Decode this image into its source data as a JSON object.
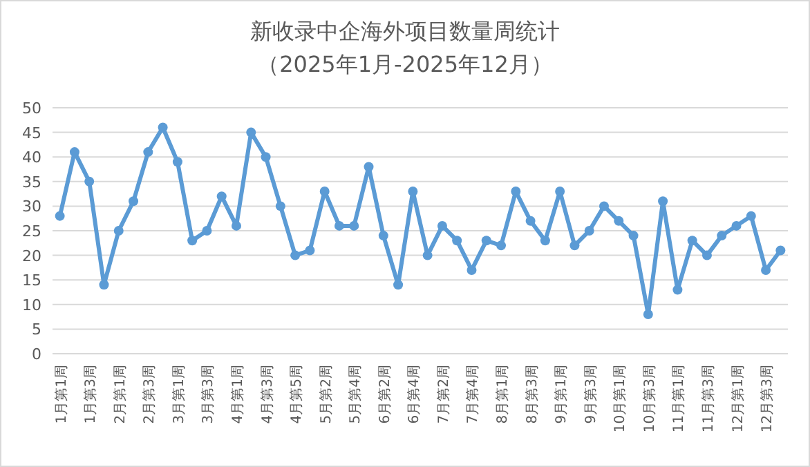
{
  "chart_data": {
    "type": "line",
    "title": "新收录中企海外项目数量周统计",
    "subtitle": "（2025年1月-2025年12月）",
    "categories": [
      "1月第1周",
      null,
      "1月第3周",
      null,
      "2月第1周",
      null,
      "2月第3周",
      null,
      "3月第1周",
      null,
      "3月第3周",
      null,
      "4月第1周",
      null,
      "4月第3周",
      null,
      "4月第5周",
      null,
      "5月第2周",
      null,
      "5月第4周",
      null,
      "6月第2周",
      null,
      "6月第4周",
      null,
      "7月第2周",
      null,
      "7月第4周",
      null,
      "8月第1周",
      null,
      "8月第3周",
      null,
      "9月第1周",
      null,
      "9月第3周",
      null,
      "10月第1周",
      null,
      "10月第3周",
      null,
      "11月第1周",
      null,
      "11月第3周",
      null,
      "12月第1周",
      null,
      "12月第3周",
      null
    ],
    "series": [
      {
        "color": "#5b9bd5",
        "values": [
          28,
          41,
          35,
          14,
          25,
          31,
          41,
          46,
          39,
          23,
          25,
          32,
          26,
          45,
          40,
          30,
          20,
          21,
          33,
          26,
          26,
          38,
          24,
          14,
          33,
          20,
          26,
          23,
          17,
          23,
          22,
          33,
          27,
          23,
          33,
          22,
          25,
          30,
          27,
          24,
          8,
          31,
          13,
          23,
          20,
          24,
          26,
          28,
          17,
          21
        ]
      }
    ],
    "ylim": [
      0,
      50
    ],
    "yticks": [
      0,
      5,
      10,
      15,
      20,
      25,
      30,
      35,
      40,
      45,
      50
    ],
    "grid": "y",
    "marker": "circle",
    "line_style": "solid"
  }
}
